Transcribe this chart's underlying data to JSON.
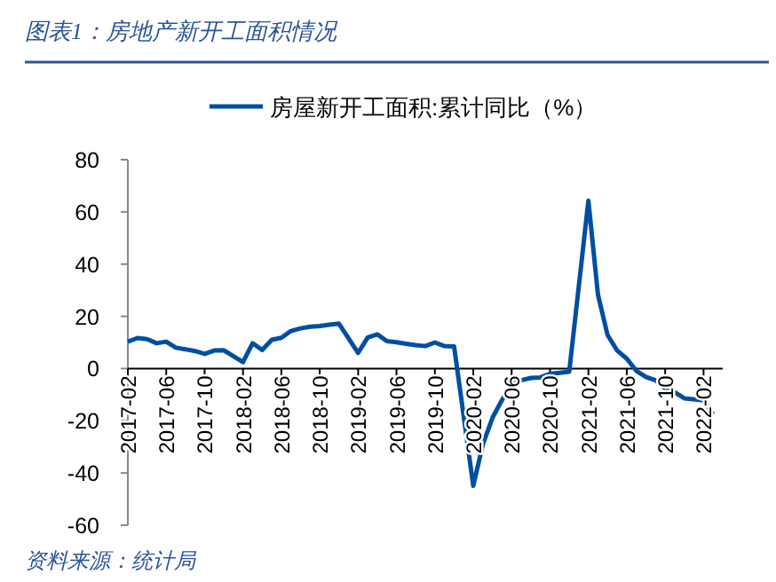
{
  "chart_data": {
    "type": "line",
    "title": "图表1：房地产新开工面积情况",
    "annotations": [
      "资料来源：统计局"
    ],
    "x": [
      "2017-02",
      "2017-03",
      "2017-04",
      "2017-05",
      "2017-06",
      "2017-07",
      "2017-08",
      "2017-09",
      "2017-10",
      "2017-11",
      "2017-12",
      "2018-02",
      "2018-03",
      "2018-04",
      "2018-05",
      "2018-06",
      "2018-07",
      "2018-08",
      "2018-09",
      "2018-10",
      "2018-11",
      "2018-12",
      "2019-02",
      "2019-03",
      "2019-04",
      "2019-05",
      "2019-06",
      "2019-07",
      "2019-08",
      "2019-09",
      "2019-10",
      "2019-11",
      "2019-12",
      "2020-02",
      "2020-03",
      "2020-04",
      "2020-05",
      "2020-06",
      "2020-07",
      "2020-08",
      "2020-09",
      "2020-10",
      "2020-11",
      "2020-12",
      "2021-02",
      "2021-03",
      "2021-04",
      "2021-05",
      "2021-06",
      "2021-07",
      "2021-08",
      "2021-09",
      "2021-10",
      "2021-11",
      "2021-12",
      "2022-02",
      "2022-03"
    ],
    "series": [
      {
        "name": "房屋新开工面积:累计同比（%）",
        "color": "#004ea2",
        "values": [
          10.3,
          11.7,
          11.3,
          9.7,
          10.3,
          8.0,
          7.4,
          6.7,
          5.6,
          6.9,
          7.0,
          2.5,
          9.7,
          7.1,
          11.0,
          11.8,
          14.4,
          15.4,
          16.0,
          16.3,
          16.8,
          17.2,
          6.0,
          11.9,
          13.1,
          10.5,
          10.1,
          9.5,
          9.0,
          8.6,
          10.0,
          8.6,
          8.5,
          -44.9,
          -29.0,
          -18.9,
          -12.0,
          -6.2,
          -4.5,
          -3.6,
          -3.4,
          -2.0,
          -1.6,
          -1.2,
          64.3,
          28.2,
          12.8,
          6.9,
          3.8,
          -0.9,
          -3.2,
          -4.5,
          -7.7,
          -9.1,
          -11.4,
          -12.2,
          -17.5
        ]
      }
    ],
    "xlim": [
      "2017-02",
      "2022-04"
    ],
    "xticks": [
      "2017-02",
      "2017-06",
      "2017-10",
      "2018-02",
      "2018-06",
      "2018-10",
      "2019-02",
      "2019-06",
      "2019-10",
      "2020-02",
      "2020-06",
      "2020-10",
      "2021-02",
      "2021-06",
      "2021-10",
      "2022-02"
    ],
    "ylim": [
      -60,
      80
    ],
    "yticks": [
      -60,
      -40,
      -20,
      0,
      20,
      40,
      60,
      80
    ],
    "legend": "top",
    "grid": false
  }
}
